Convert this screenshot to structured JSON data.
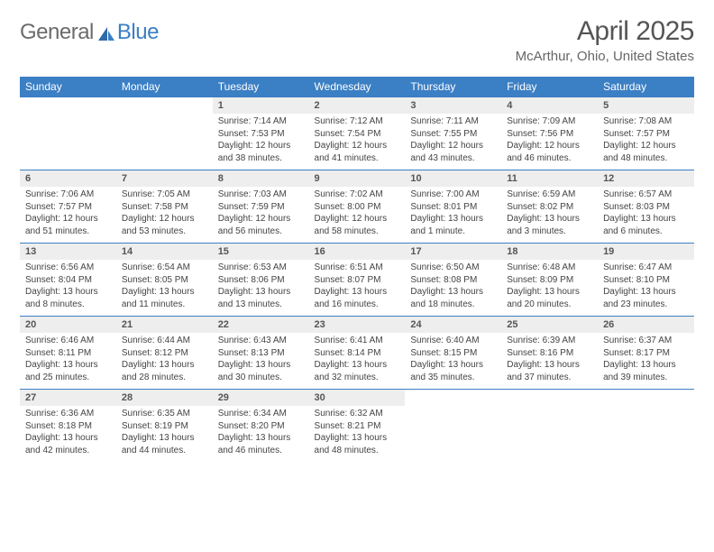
{
  "logo": {
    "word1": "General",
    "word2": "Blue"
  },
  "title": "April 2025",
  "location": "McArthur, Ohio, United States",
  "theme": {
    "header_bg": "#3b7fc4",
    "header_text": "#ffffff",
    "daynum_bg": "#eeeeee",
    "row_border": "#3b7fc4",
    "page_bg": "#ffffff",
    "title_color": "#555555",
    "subtitle_color": "#666666",
    "body_text": "#444444"
  },
  "weekdays": [
    "Sunday",
    "Monday",
    "Tuesday",
    "Wednesday",
    "Thursday",
    "Friday",
    "Saturday"
  ],
  "weeks": [
    [
      null,
      null,
      {
        "n": "1",
        "sunrise": "7:14 AM",
        "sunset": "7:53 PM",
        "daylight": "12 hours and 38 minutes."
      },
      {
        "n": "2",
        "sunrise": "7:12 AM",
        "sunset": "7:54 PM",
        "daylight": "12 hours and 41 minutes."
      },
      {
        "n": "3",
        "sunrise": "7:11 AM",
        "sunset": "7:55 PM",
        "daylight": "12 hours and 43 minutes."
      },
      {
        "n": "4",
        "sunrise": "7:09 AM",
        "sunset": "7:56 PM",
        "daylight": "12 hours and 46 minutes."
      },
      {
        "n": "5",
        "sunrise": "7:08 AM",
        "sunset": "7:57 PM",
        "daylight": "12 hours and 48 minutes."
      }
    ],
    [
      {
        "n": "6",
        "sunrise": "7:06 AM",
        "sunset": "7:57 PM",
        "daylight": "12 hours and 51 minutes."
      },
      {
        "n": "7",
        "sunrise": "7:05 AM",
        "sunset": "7:58 PM",
        "daylight": "12 hours and 53 minutes."
      },
      {
        "n": "8",
        "sunrise": "7:03 AM",
        "sunset": "7:59 PM",
        "daylight": "12 hours and 56 minutes."
      },
      {
        "n": "9",
        "sunrise": "7:02 AM",
        "sunset": "8:00 PM",
        "daylight": "12 hours and 58 minutes."
      },
      {
        "n": "10",
        "sunrise": "7:00 AM",
        "sunset": "8:01 PM",
        "daylight": "13 hours and 1 minute."
      },
      {
        "n": "11",
        "sunrise": "6:59 AM",
        "sunset": "8:02 PM",
        "daylight": "13 hours and 3 minutes."
      },
      {
        "n": "12",
        "sunrise": "6:57 AM",
        "sunset": "8:03 PM",
        "daylight": "13 hours and 6 minutes."
      }
    ],
    [
      {
        "n": "13",
        "sunrise": "6:56 AM",
        "sunset": "8:04 PM",
        "daylight": "13 hours and 8 minutes."
      },
      {
        "n": "14",
        "sunrise": "6:54 AM",
        "sunset": "8:05 PM",
        "daylight": "13 hours and 11 minutes."
      },
      {
        "n": "15",
        "sunrise": "6:53 AM",
        "sunset": "8:06 PM",
        "daylight": "13 hours and 13 minutes."
      },
      {
        "n": "16",
        "sunrise": "6:51 AM",
        "sunset": "8:07 PM",
        "daylight": "13 hours and 16 minutes."
      },
      {
        "n": "17",
        "sunrise": "6:50 AM",
        "sunset": "8:08 PM",
        "daylight": "13 hours and 18 minutes."
      },
      {
        "n": "18",
        "sunrise": "6:48 AM",
        "sunset": "8:09 PM",
        "daylight": "13 hours and 20 minutes."
      },
      {
        "n": "19",
        "sunrise": "6:47 AM",
        "sunset": "8:10 PM",
        "daylight": "13 hours and 23 minutes."
      }
    ],
    [
      {
        "n": "20",
        "sunrise": "6:46 AM",
        "sunset": "8:11 PM",
        "daylight": "13 hours and 25 minutes."
      },
      {
        "n": "21",
        "sunrise": "6:44 AM",
        "sunset": "8:12 PM",
        "daylight": "13 hours and 28 minutes."
      },
      {
        "n": "22",
        "sunrise": "6:43 AM",
        "sunset": "8:13 PM",
        "daylight": "13 hours and 30 minutes."
      },
      {
        "n": "23",
        "sunrise": "6:41 AM",
        "sunset": "8:14 PM",
        "daylight": "13 hours and 32 minutes."
      },
      {
        "n": "24",
        "sunrise": "6:40 AM",
        "sunset": "8:15 PM",
        "daylight": "13 hours and 35 minutes."
      },
      {
        "n": "25",
        "sunrise": "6:39 AM",
        "sunset": "8:16 PM",
        "daylight": "13 hours and 37 minutes."
      },
      {
        "n": "26",
        "sunrise": "6:37 AM",
        "sunset": "8:17 PM",
        "daylight": "13 hours and 39 minutes."
      }
    ],
    [
      {
        "n": "27",
        "sunrise": "6:36 AM",
        "sunset": "8:18 PM",
        "daylight": "13 hours and 42 minutes."
      },
      {
        "n": "28",
        "sunrise": "6:35 AM",
        "sunset": "8:19 PM",
        "daylight": "13 hours and 44 minutes."
      },
      {
        "n": "29",
        "sunrise": "6:34 AM",
        "sunset": "8:20 PM",
        "daylight": "13 hours and 46 minutes."
      },
      {
        "n": "30",
        "sunrise": "6:32 AM",
        "sunset": "8:21 PM",
        "daylight": "13 hours and 48 minutes."
      },
      null,
      null,
      null
    ]
  ],
  "labels": {
    "sunrise": "Sunrise:",
    "sunset": "Sunset:",
    "daylight": "Daylight:"
  }
}
